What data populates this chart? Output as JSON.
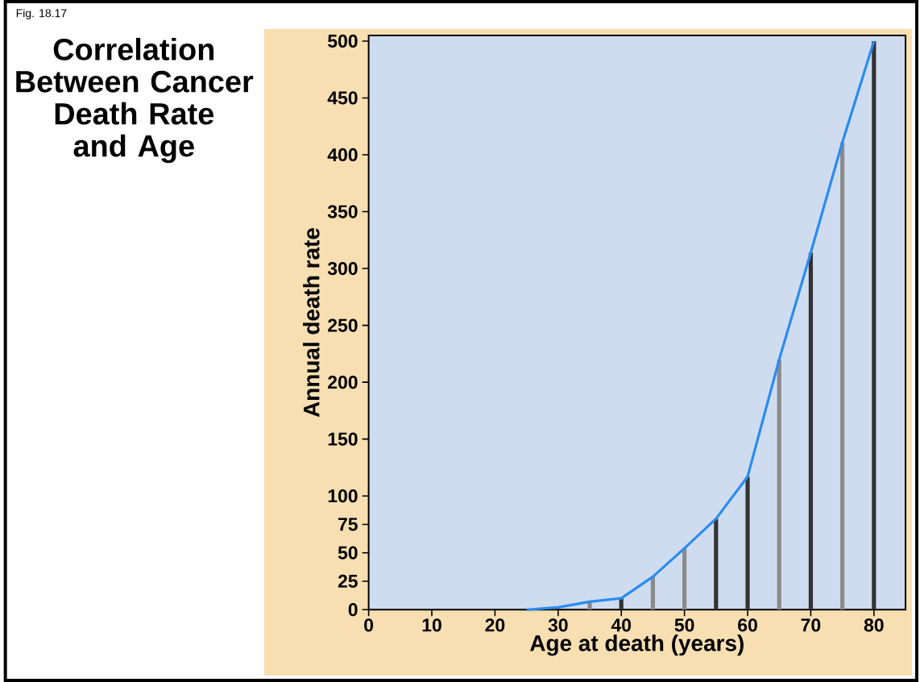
{
  "chart_data": {
    "type": "line",
    "title": "Correlation Between Cancer Death Rate and Age",
    "xlabel": "Age at death (years)",
    "ylabel": "Annual death rate",
    "annotations": [
      "Fig. 18.17"
    ],
    "xlim": [
      0,
      85
    ],
    "xticks": [
      0,
      10,
      20,
      30,
      40,
      50,
      60,
      70,
      80
    ],
    "ylim": [
      0,
      505
    ],
    "yticks": [
      0,
      25,
      50,
      75,
      100,
      150,
      200,
      250,
      300,
      350,
      400,
      450,
      500
    ],
    "grid": false,
    "marker": "none",
    "line_style": "solid",
    "series": [
      {
        "type": "bar",
        "x": [
          35,
          40,
          45,
          50,
          55,
          60,
          65,
          70,
          75,
          80
        ],
        "values": [
          7,
          10,
          29,
          54,
          80,
          117,
          220,
          314,
          411,
          500
        ],
        "colors": [
          "#8a8a8a",
          "#333333",
          "#8a8a8a",
          "#8a8a8a",
          "#333333",
          "#333333",
          "#8a8a8a",
          "#333333",
          "#8a8a8a",
          "#333333"
        ]
      },
      {
        "x": [
          25,
          30,
          35,
          40,
          45,
          50,
          55,
          60,
          65,
          70,
          75,
          80
        ],
        "values": [
          0,
          2,
          7,
          10,
          29,
          54,
          80,
          117,
          220,
          314,
          411,
          500
        ],
        "color": "#2a8cf0"
      }
    ]
  }
}
